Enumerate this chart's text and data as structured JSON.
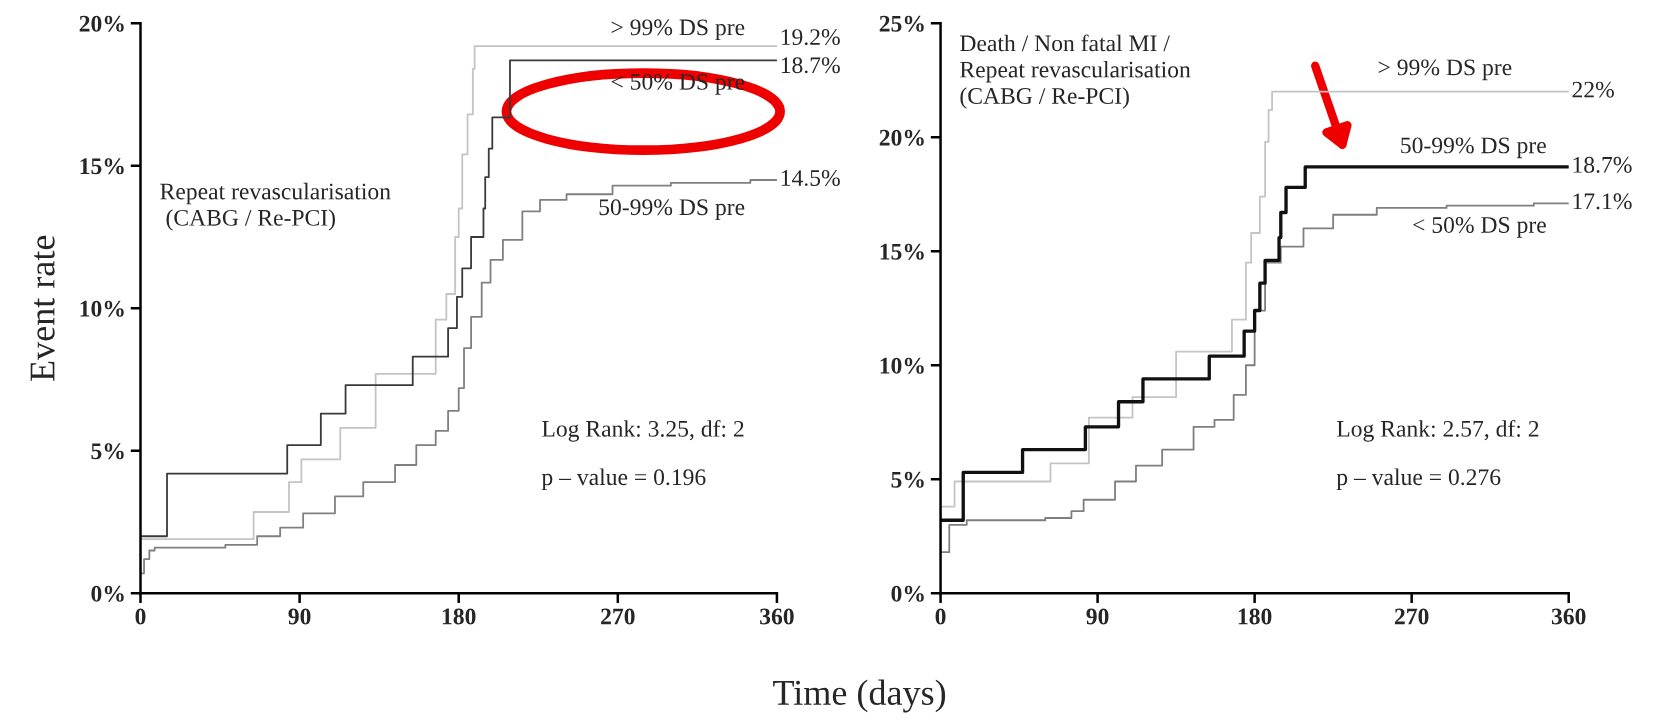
{
  "chart_data": [
    {
      "type": "step",
      "title": "Repeat revascularisation\n (CABG / Re-PCI)",
      "ylabel": "Event rate",
      "xlabel": "Time (days)",
      "xlim": [
        0,
        360
      ],
      "xticks": [
        0,
        90,
        180,
        270,
        360
      ],
      "ylim": [
        0,
        20
      ],
      "yticks": [
        {
          "value": 0,
          "label": "0%"
        },
        {
          "value": 5,
          "label": "5%"
        },
        {
          "value": 10,
          "label": "10%"
        },
        {
          "value": 15,
          "label": "15%"
        },
        {
          "value": 20,
          "label": "20%"
        }
      ],
      "series": [
        {
          "name": "> 99% DS pre",
          "color": "#c4c4c4",
          "x": [
            0,
            64,
            84,
            91,
            113,
            133,
            167,
            173,
            178,
            180,
            182,
            185,
            188,
            189,
            360
          ],
          "values": [
            1.9,
            2.85,
            3.9,
            4.7,
            5.8,
            7.7,
            9.6,
            10.5,
            12.5,
            13.5,
            15.4,
            16.8,
            18.4,
            19.2,
            19.2
          ],
          "value_labels": [
            null,
            null,
            null,
            null,
            null,
            null,
            null,
            null,
            null,
            null,
            null,
            null,
            null,
            null,
            "19.2%"
          ]
        },
        {
          "name": "< 50% DS pre",
          "color": "#3a3a3a",
          "x": [
            0,
            15,
            83,
            102,
            116,
            154,
            174,
            179,
            182,
            187,
            194,
            195,
            197,
            199,
            209,
            360
          ],
          "values": [
            2.0,
            4.2,
            5.2,
            6.3,
            7.3,
            8.3,
            9.3,
            10.4,
            11.4,
            12.5,
            13.5,
            14.6,
            15.6,
            16.7,
            18.7,
            18.7
          ],
          "value_labels": [
            null,
            null,
            null,
            null,
            null,
            null,
            null,
            null,
            null,
            null,
            null,
            null,
            null,
            null,
            null,
            "18.7%"
          ]
        },
        {
          "name": "50-99% DS pre",
          "color": "#808080",
          "x": [
            0,
            2,
            5,
            8,
            48,
            66,
            79,
            92,
            110,
            126,
            144,
            156,
            167,
            174,
            180,
            183,
            187,
            193,
            198,
            205,
            216,
            226,
            241,
            267,
            300,
            345,
            360
          ],
          "values": [
            0.7,
            1.2,
            1.5,
            1.6,
            1.7,
            2.0,
            2.3,
            2.8,
            3.4,
            3.9,
            4.5,
            5.2,
            5.7,
            6.4,
            7.2,
            8.6,
            9.7,
            10.9,
            11.7,
            12.4,
            13.4,
            13.8,
            14.0,
            14.3,
            14.4,
            14.5,
            14.5
          ],
          "value_labels": [
            null,
            null,
            null,
            null,
            null,
            null,
            null,
            null,
            null,
            null,
            null,
            null,
            null,
            null,
            null,
            null,
            null,
            null,
            null,
            null,
            null,
            null,
            null,
            null,
            null,
            null,
            "14.5%"
          ]
        }
      ],
      "annotations": [
        "Log Rank: 3.25, df: 2",
        "p – value = 0.196"
      ]
    },
    {
      "type": "step",
      "title": "Death / Non fatal MI /\nRepeat revascularisation\n(CABG / Re-PCI)",
      "xlim": [
        0,
        360
      ],
      "xticks": [
        0,
        90,
        180,
        270,
        360
      ],
      "ylim": [
        0,
        25
      ],
      "yticks": [
        {
          "value": 0,
          "label": "0%"
        },
        {
          "value": 5,
          "label": "5%"
        },
        {
          "value": 10,
          "label": "10%"
        },
        {
          "value": 15,
          "label": "15%"
        },
        {
          "value": 20,
          "label": "20%"
        },
        {
          "value": 25,
          "label": "25%"
        }
      ],
      "series": [
        {
          "name": "> 99% DS pre",
          "color": "#c4c4c4",
          "x": [
            0,
            8,
            63,
            85,
            110,
            135,
            167,
            175,
            178,
            183,
            186,
            188,
            190,
            360
          ],
          "values": [
            3.8,
            4.9,
            5.7,
            7.7,
            8.6,
            10.6,
            12.0,
            14.5,
            15.8,
            17.4,
            19.8,
            21.2,
            22.0,
            22.0
          ],
          "value_labels": [
            null,
            null,
            null,
            null,
            null,
            null,
            null,
            null,
            null,
            null,
            null,
            null,
            null,
            "22%"
          ]
        },
        {
          "name": "< 50% DS pre",
          "color": "#7f7f7f",
          "x": [
            0,
            5,
            15,
            60,
            75,
            82,
            100,
            112,
            127,
            145,
            157,
            168,
            175,
            180,
            186,
            195,
            208,
            225,
            250,
            290,
            340,
            360
          ],
          "values": [
            1.8,
            3.0,
            3.2,
            3.3,
            3.6,
            4.1,
            4.9,
            5.6,
            6.3,
            7.3,
            7.6,
            8.7,
            10.0,
            12.4,
            14.5,
            15.2,
            16.0,
            16.6,
            16.9,
            17.0,
            17.1,
            17.1
          ],
          "value_labels": [
            null,
            null,
            null,
            null,
            null,
            null,
            null,
            null,
            null,
            null,
            null,
            null,
            null,
            null,
            null,
            null,
            null,
            null,
            null,
            null,
            null,
            "17.1%"
          ]
        },
        {
          "name": "50-99% DS pre",
          "color": "#111111",
          "x": [
            0,
            13,
            47,
            83,
            102,
            116,
            154,
            174,
            180,
            183,
            186,
            194,
            195,
            198,
            209,
            360
          ],
          "values": [
            3.2,
            5.3,
            6.3,
            7.3,
            8.4,
            9.4,
            10.4,
            11.5,
            12.4,
            13.6,
            14.6,
            15.6,
            16.7,
            17.8,
            18.7,
            18.7
          ],
          "value_labels": [
            null,
            null,
            null,
            null,
            null,
            null,
            null,
            null,
            null,
            null,
            null,
            null,
            null,
            null,
            null,
            "18.7%"
          ]
        }
      ],
      "annotations": [
        "Log Rank: 2.57, df: 2",
        "p – value = 0.276"
      ]
    }
  ]
}
